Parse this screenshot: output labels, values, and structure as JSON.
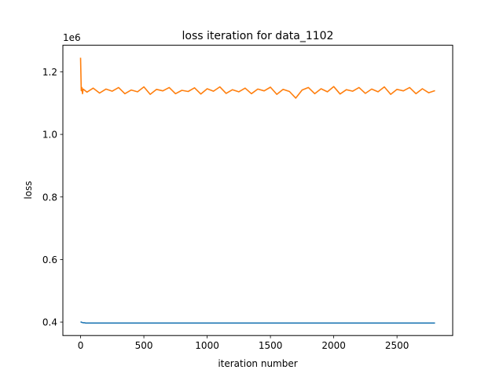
{
  "chart_data": {
    "type": "line",
    "title": "loss iteration for data_1102",
    "xlabel": "iteration number",
    "ylabel": "loss",
    "y_multiplier_label": "1e6",
    "xlim": [
      -140,
      2940
    ],
    "ylim": [
      0.357,
      1.285
    ],
    "x_ticks": [
      0,
      500,
      1000,
      1500,
      2000,
      2500
    ],
    "x_tick_labels": [
      "0",
      "500",
      "1000",
      "1500",
      "2000",
      "2500"
    ],
    "y_ticks": [
      0.4,
      0.6,
      0.8,
      1.0,
      1.2
    ],
    "y_tick_labels": [
      "0.4",
      "0.6",
      "0.8",
      "1.0",
      "1.2"
    ],
    "grid": false,
    "legend": "none",
    "series": [
      {
        "color": "#1f77b4",
        "x": [
          0,
          10,
          20,
          30,
          40,
          60,
          100,
          200,
          500,
          1000,
          1500,
          2000,
          2500,
          2800
        ],
        "y": [
          0.401,
          0.399,
          0.398,
          0.398,
          0.397,
          0.397,
          0.397,
          0.397,
          0.397,
          0.397,
          0.397,
          0.397,
          0.397,
          0.397
        ]
      },
      {
        "color": "#ff7f0e",
        "x": [
          0,
          5,
          10,
          15,
          20,
          50,
          100,
          150,
          200,
          250,
          300,
          350,
          400,
          450,
          500,
          550,
          600,
          650,
          700,
          750,
          800,
          850,
          900,
          950,
          1000,
          1050,
          1100,
          1150,
          1200,
          1250,
          1300,
          1350,
          1400,
          1450,
          1500,
          1550,
          1600,
          1650,
          1700,
          1750,
          1800,
          1850,
          1900,
          1950,
          2000,
          2050,
          2100,
          2150,
          2200,
          2250,
          2300,
          2350,
          2400,
          2450,
          2500,
          2550,
          2600,
          2650,
          2700,
          2750,
          2800
        ],
        "y": [
          1.245,
          1.14,
          1.15,
          1.13,
          1.145,
          1.135,
          1.148,
          1.132,
          1.145,
          1.138,
          1.15,
          1.13,
          1.142,
          1.136,
          1.152,
          1.128,
          1.144,
          1.139,
          1.15,
          1.13,
          1.141,
          1.137,
          1.149,
          1.129,
          1.146,
          1.138,
          1.152,
          1.131,
          1.143,
          1.136,
          1.148,
          1.13,
          1.145,
          1.139,
          1.151,
          1.128,
          1.144,
          1.137,
          1.116,
          1.142,
          1.15,
          1.13,
          1.146,
          1.136,
          1.153,
          1.129,
          1.143,
          1.138,
          1.15,
          1.131,
          1.145,
          1.136,
          1.152,
          1.128,
          1.144,
          1.139,
          1.15,
          1.13,
          1.146,
          1.133,
          1.14
        ]
      }
    ]
  }
}
